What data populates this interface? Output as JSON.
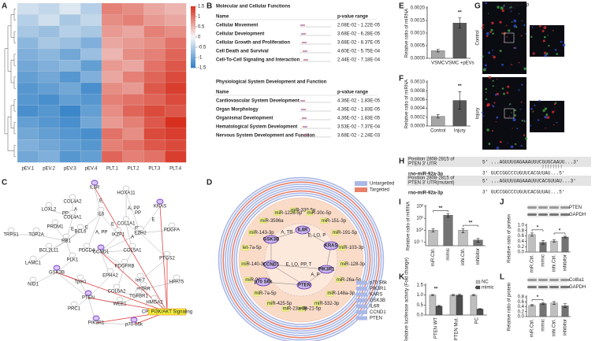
{
  "chart_data": [
    {
      "type": "heatmap",
      "label": "A",
      "categories": [
        "pEV.1",
        "pEV.2",
        "pEV.3",
        "pEV.4",
        "PLT.1",
        "PLT.2",
        "PLT.3",
        "PLT.4"
      ],
      "values": [
        [
          -0.3,
          -0.4,
          -0.2,
          -0.5,
          0.9,
          0.8,
          0.6,
          0.5
        ],
        [
          -0.5,
          -0.3,
          -0.6,
          -0.4,
          0.8,
          0.9,
          0.7,
          0.6
        ],
        [
          -0.6,
          -0.7,
          -0.5,
          -0.6,
          0.7,
          0.6,
          0.9,
          0.8
        ],
        [
          -0.8,
          -0.6,
          -0.7,
          -0.9,
          0.6,
          0.7,
          0.8,
          1.0
        ],
        [
          -0.9,
          -0.8,
          -1.0,
          -0.7,
          0.5,
          0.8,
          0.9,
          1.1
        ],
        [
          -1.0,
          -0.9,
          -0.8,
          -1.1,
          0.7,
          0.6,
          1.0,
          1.2
        ],
        [
          -1.1,
          -1.0,
          -1.2,
          -0.9,
          0.6,
          0.9,
          1.1,
          1.3
        ],
        [
          -1.2,
          -1.1,
          -1.0,
          -1.3,
          0.8,
          0.7,
          1.2,
          1.4
        ],
        [
          -1.2,
          -1.3,
          -1.1,
          -1.2,
          0.9,
          1.0,
          1.1,
          1.3
        ],
        [
          -1.3,
          -1.2,
          -1.4,
          -1.1,
          0.8,
          1.1,
          1.3,
          1.2
        ],
        [
          -1.1,
          -1.2,
          -1.3,
          -1.0,
          0.7,
          0.9,
          1.2,
          1.5
        ],
        [
          -1.0,
          -1.1,
          -1.2,
          -1.3,
          1.0,
          0.8,
          1.3,
          1.4
        ],
        [
          -0.9,
          -1.0,
          -1.1,
          -1.2,
          0.9,
          1.0,
          1.2,
          1.3
        ],
        [
          -1.0,
          -0.9,
          -1.2,
          -1.1,
          1.1,
          0.9,
          1.0,
          1.4
        ]
      ],
      "zlim": [
        -1.5,
        1.5
      ],
      "zticks": [
        1.5,
        1,
        0.5,
        0,
        -0.5,
        -1,
        -1.5
      ],
      "colors": [
        "#2f7fc6",
        "#f7f7f7",
        "#d7301f"
      ]
    },
    {
      "type": "bar",
      "label": "E",
      "y_label": "Relative ratio of miRNA",
      "categories": [
        "VSMC",
        "VSMC +pEVs"
      ],
      "values": [
        0.0003,
        0.0014
      ],
      "errors": [
        5e-05,
        0.0002
      ],
      "colors": [
        "#a6a6a6",
        "#595959"
      ],
      "ylim": [
        0,
        0.002
      ],
      "yticks": [
        {
          "value": 0,
          "label": "0.0000"
        },
        0.0005,
        {
          "value": 0.001,
          "label": "0.0010"
        },
        0.0015,
        {
          "value": 0.002,
          "label": "0.0020"
        }
      ],
      "significance": [
        {
          "label": "**",
          "bars": [
            1
          ]
        }
      ]
    },
    {
      "type": "bar",
      "label": "F",
      "y_label": "Relative ratio of miRNA",
      "categories": [
        "Control",
        "Injury"
      ],
      "values": [
        0.00022,
        0.00058
      ],
      "errors": [
        4e-05,
        0.0002
      ],
      "colors": [
        "#a6a6a6",
        "#595959"
      ],
      "ylim": [
        0,
        0.001
      ],
      "yticks": [
        {
          "value": 0,
          "label": "0.0000"
        },
        0.0002,
        0.0004,
        0.0006,
        0.0008,
        {
          "value": 0.001,
          "label": "0.0010"
        }
      ],
      "significance": [
        {
          "label": "**",
          "bars": [
            1
          ]
        }
      ]
    },
    {
      "type": "bar",
      "label": "I",
      "y_label": "Relative ratio of miRNA",
      "log_scale": true,
      "categories": [
        "miR.Ctrl.",
        "mimic",
        "inhi.Ctrl.",
        "inhibitor"
      ],
      "values": [
        1,
        18,
        1,
        0.15
      ],
      "errors": [
        0.3,
        6,
        0.4,
        0.05
      ],
      "colors": [
        "#bfbfbf",
        "#737373",
        "#bfbfbf",
        "#737373"
      ],
      "ylim": [
        0.05,
        100
      ],
      "yticks": [
        {
          "value": 0.1,
          "label": "10⁻¹"
        },
        {
          "value": 1,
          "label": "10⁰"
        },
        {
          "value": 10,
          "label": "10¹"
        },
        {
          "value": 100,
          "label": "10²"
        }
      ],
      "significance": [
        {
          "label": "**",
          "bars": [
            0,
            1
          ]
        },
        {
          "label": "**",
          "bars": [
            2,
            3
          ]
        }
      ]
    },
    {
      "type": "bar",
      "label": "J",
      "y_label": "Relative ratio of protein",
      "blot": [
        "PTEN",
        "GAPDH"
      ],
      "categories": [
        "miR.Ctrl.",
        "mimic",
        "inhi.Ctrl.",
        "inhibitor"
      ],
      "values": [
        0.65,
        0.36,
        0.41,
        0.56
      ],
      "errors": [
        0.06,
        0.07,
        0.05,
        0.03
      ],
      "colors": [
        "#bfbfbf",
        "#737373",
        "#bfbfbf",
        "#737373"
      ],
      "ylim": [
        0,
        1
      ],
      "yticks": [
        {
          "value": 0,
          "label": "0.0"
        },
        0.2,
        0.4,
        0.6,
        0.8,
        {
          "value": 1,
          "label": "1.0"
        }
      ],
      "significance": [
        {
          "label": "*",
          "bars": [
            0,
            1
          ]
        },
        {
          "label": "*",
          "bars": [
            2,
            3
          ]
        }
      ]
    },
    {
      "type": "bar",
      "label": "K",
      "y_label": "Relative luciferase activity (Fold change)",
      "categories": [
        "PTEN WT",
        "PTEN Mut.",
        "PC"
      ],
      "series": [
        {
          "name": "NC",
          "color": "#bfbfbf",
          "values": [
            1,
            1,
            1
          ],
          "errors": [
            0.03,
            0.03,
            0.03
          ]
        },
        {
          "name": "mimic",
          "color": "#4d4d4d",
          "values": [
            0.45,
            1,
            0.3
          ],
          "errors": [
            0.03,
            0.04,
            0.02
          ]
        }
      ],
      "ylim": [
        0,
        1.5
      ],
      "yticks": [
        {
          "value": 0,
          "label": "0.0"
        },
        0.5,
        {
          "value": 1,
          "label": "1.0"
        },
        1.5
      ],
      "significance": [
        {
          "label": "**",
          "bars": [
            0
          ]
        },
        {
          "label": "**",
          "bars": [
            2
          ]
        }
      ]
    },
    {
      "type": "bar",
      "label": "L",
      "y_label": "Relative ratio of protein",
      "blot": [
        "Col8a1",
        "GAPDH"
      ],
      "categories": [
        "miR.Ctrl.",
        "mimic",
        "inhi.Ctrl.",
        "inhibitor"
      ],
      "values": [
        0.46,
        0.53,
        0.55,
        0.44
      ],
      "errors": [
        0.03,
        0.03,
        0.06,
        0.08
      ],
      "colors": [
        "#bfbfbf",
        "#737373",
        "#bfbfbf",
        "#737373"
      ],
      "ylim": [
        0,
        0.8
      ],
      "yticks": [
        {
          "value": 0,
          "label": "0.0"
        },
        0.2,
        0.4,
        0.6,
        0.8
      ],
      "significance": [
        {
          "label": "*",
          "bars": [
            0,
            1
          ]
        }
      ]
    }
  ],
  "panel_b": {
    "label": "B",
    "tables": [
      {
        "title": "Molecular and Cellular Functions",
        "headers": [
          "Name",
          "p-value range"
        ],
        "rows": [
          [
            "Cellular Movement",
            "2.08E-02 - 1.22E-05"
          ],
          [
            "Cellular Development",
            "3.68E-02 - 6.28E-05"
          ],
          [
            "Cellular Growth and Proliferation",
            "3.68E-02 - 8.37E-05"
          ],
          [
            "Cell Death and Survival",
            "4.60E-02 - 5.75E-04"
          ],
          [
            "Cell-To-Cell Signaling and Interaction",
            "2.44E-02 - 7.18E-04"
          ]
        ]
      },
      {
        "title": "Physiological System Development and Function",
        "headers": [
          "Name",
          "p-value range"
        ],
        "rows": [
          [
            "Cardiovascular System Development",
            "4.36E-02 - 1.83E-05"
          ],
          [
            "Organ Morphology",
            "4.36E-02 - 1.83E-05"
          ],
          [
            "Organismal Development",
            "4.36E-02 - 1.83E-05"
          ],
          [
            "Hematological System Development",
            "3.53E-02 - 7.37E-04"
          ],
          [
            "Nervous System Development and Function",
            "3.68E-02 - 2.24E-03"
          ]
        ]
      }
    ]
  },
  "panel_c": {
    "label": "C",
    "nodes": [
      "IL6R",
      "HOXA11",
      "KRAS",
      "COL4A2",
      "LOXL2",
      "COL4A1",
      "IL6",
      "COL1A1",
      "PRDM1",
      "BCL6",
      "IKZF1",
      "EZH2",
      "PDGFA",
      "TRPS1",
      "TOP2A",
      "RB1",
      "BCL2L11",
      "LAMC1",
      "PLK1",
      "PDCD4",
      "CCND1",
      "COL5A1",
      "PTGS2",
      "NID1",
      "GSK3B",
      "Tpm1",
      "EPHA2",
      "PDGFRB",
      "let-7",
      "HPAT5",
      "mTRR",
      "HMGA2",
      "PRC1",
      "PTEN",
      "WEE1",
      "COL5A2",
      "TGFBR1",
      "PIK3R1",
      "p70 S6k",
      "CP: PI3K/AKT Signaling"
    ],
    "edge_labels": [
      "E",
      "A, PP",
      "PP",
      "E",
      "A",
      "PP",
      "E",
      "E",
      "A, PP",
      "E",
      "PP",
      "A"
    ]
  },
  "panel_d": {
    "label": "D",
    "legend": [
      "Untargetted",
      "Targetted"
    ],
    "mirnas": [
      "miR-339-5p",
      "miR-30c-5p",
      "miR-151-3p",
      "miR-191-5p",
      "miR-103-3p",
      "miR-128-3p",
      "miR-26a-5p",
      "miR-148a-3p",
      "miR-532-3p",
      "miR-21-5p",
      "miR-23a-3p",
      "miR-425-5p",
      "miR-7a-5p",
      "miR-92a-3p",
      "miR-140-3p",
      "let-7a-5p",
      "miR-143-3p",
      "miR-3596a",
      "miR-1226-5p"
    ],
    "genes": [
      "IL6R",
      "GSK3B",
      "KRAS",
      "PIK3R1",
      "CCND1",
      "PTEN",
      "p70 S6k"
    ],
    "edge_labels": [
      "A, TR",
      "E, LO, P",
      "E, LO, PP, T",
      "A, P"
    ],
    "gene_legend": [
      "p70 S6k",
      "PIK3R1",
      "KARS",
      "GSK3B",
      "IL6R",
      "CCND1",
      "PTEN"
    ]
  },
  "panel_g": {
    "label": "G",
    "rows": [
      "Control",
      "Injury"
    ],
    "stains": [
      "miR-92a-3p",
      "DAPI"
    ]
  },
  "panel_h": {
    "label": "H",
    "rows": [
      {
        "name": [
          "Position 2808-2815 of",
          "PTEN 3' UTR"
        ],
        "seq": [
          "5'  ...AGUUUUAGAAAUUUCGUGCAAUU...3'"
        ]
      },
      {
        "name": [
          "rno-miR-92a-3p"
        ],
        "seq": [
          "3'  GUCCGGCCCUGUUCACGUUAU...5'"
        ]
      },
      {
        "name": [
          "Position 2808-2815 of",
          "PTEN 3' UTR(mutant)"
        ],
        "seq": [
          "5'  ...AGUUUUAGAAAUUU",
          "CACGUUA",
          "U...3'"
        ]
      },
      {
        "name": [
          "rno-miR-92a-3p"
        ],
        "seq": [
          "3'  GUCCGGCCCUGUUCACGUUAU...5'"
        ]
      }
    ]
  }
}
